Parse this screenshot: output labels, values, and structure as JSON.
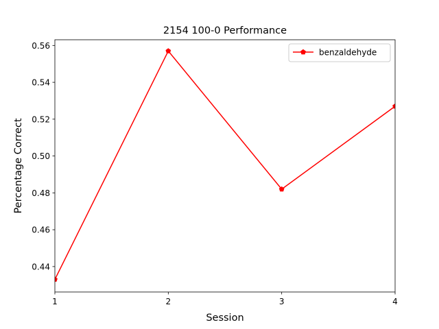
{
  "chart_data": {
    "type": "line",
    "title": "2154 100-0 Performance",
    "xlabel": "Session",
    "ylabel": "Percentage Correct",
    "x": [
      1,
      2,
      3,
      4
    ],
    "x_ticks": [
      "1",
      "2",
      "3",
      "4"
    ],
    "xlim": [
      1,
      4
    ],
    "y_ticks": [
      "0.44",
      "0.46",
      "0.48",
      "0.50",
      "0.52",
      "0.54",
      "0.56"
    ],
    "ylim": [
      0.4262,
      0.5631
    ],
    "grid": false,
    "legend_position": "top-right",
    "series": [
      {
        "name": "benzaldehyde",
        "color": "#ff0000",
        "marker": "pentagon",
        "values": [
          0.433,
          0.557,
          0.482,
          0.527
        ]
      }
    ]
  }
}
